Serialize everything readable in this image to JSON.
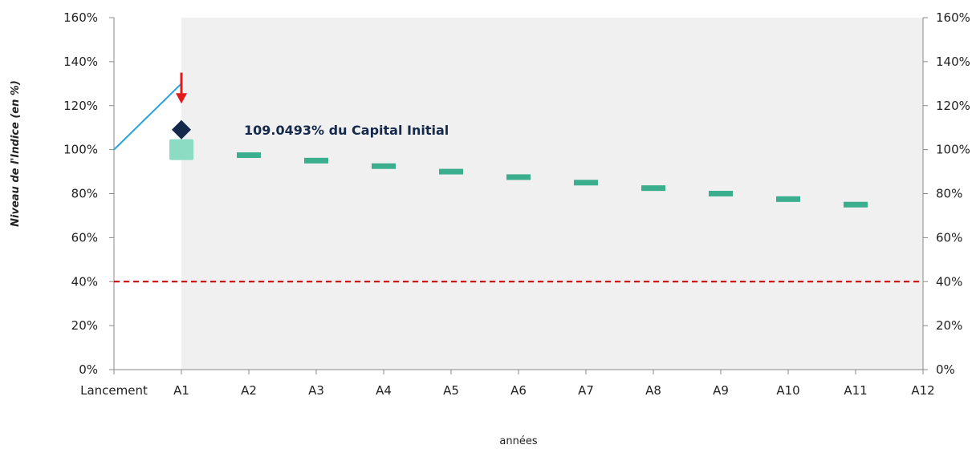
{
  "chart_data": {
    "type": "line",
    "x_categories": [
      "Lancement",
      "A1",
      "A2",
      "A3",
      "A4",
      "A5",
      "A6",
      "A7",
      "A8",
      "A9",
      "A10",
      "A11",
      "A12"
    ],
    "y_ticks": [
      "0%",
      "20%",
      "40%",
      "60%",
      "80%",
      "100%",
      "120%",
      "140%",
      "160%"
    ],
    "ylim": [
      0,
      160
    ],
    "ylabel": "Niveau de l'Indice (en %)",
    "xlabel": "années",
    "grid": false,
    "shaded_region": {
      "from": "A1",
      "to": "A12",
      "color": "#f0f0f0"
    },
    "index_line": {
      "color": "#29a3dd",
      "points": [
        [
          "Lancement",
          100
        ],
        [
          "A1",
          130
        ]
      ]
    },
    "barrier": {
      "value": 40,
      "color": "#c00000",
      "style": "dashed"
    },
    "autocall_levels": {
      "color": "#3aae8d",
      "points": [
        [
          "A1",
          100
        ],
        [
          "A2",
          97.5
        ],
        [
          "A3",
          95
        ],
        [
          "A4",
          92.5
        ],
        [
          "A5",
          90
        ],
        [
          "A6",
          87.5
        ],
        [
          "A7",
          85
        ],
        [
          "A8",
          82.5
        ],
        [
          "A9",
          80
        ],
        [
          "A10",
          77.5
        ],
        [
          "A11",
          75
        ]
      ]
    },
    "payout_marker": {
      "category": "A1",
      "value": 109.0493,
      "color": "#15294b",
      "shape": "diamond"
    },
    "level_marker": {
      "category": "A1",
      "value": 100,
      "color": "#8cdcc4",
      "shape": "square"
    },
    "arrow": {
      "category": "A1",
      "color": "#e11b1b",
      "from_value": 135,
      "to_value": 122
    },
    "annotation": {
      "text": "109.0493% du Capital Initial",
      "color": "#15294b"
    }
  }
}
